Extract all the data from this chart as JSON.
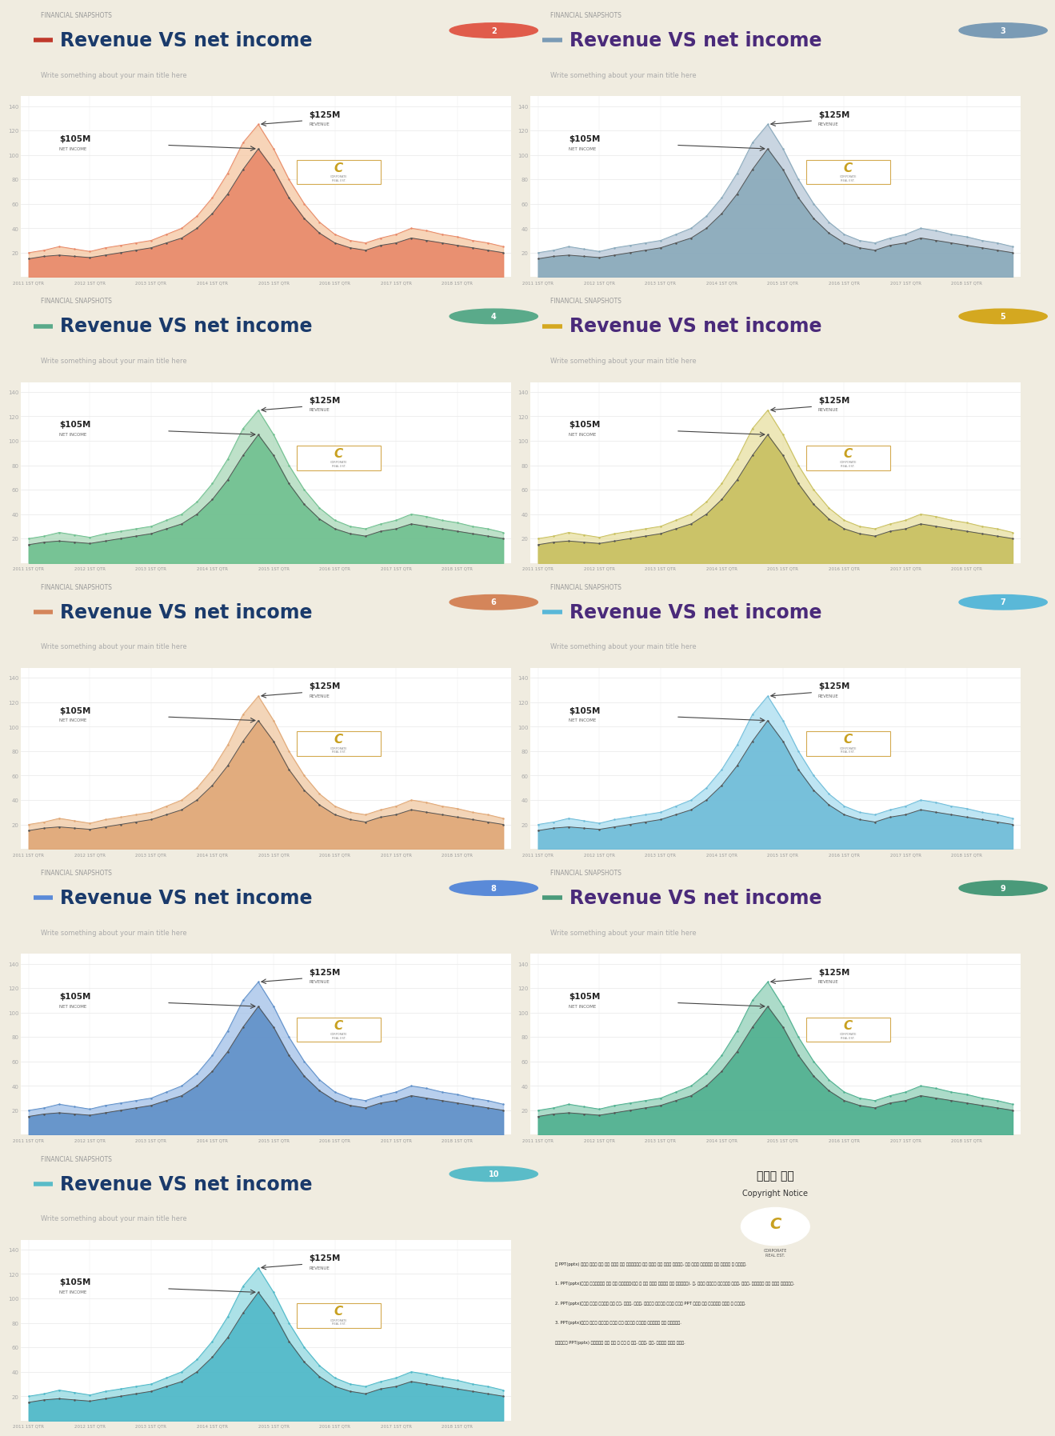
{
  "background_color": "#f0ece0",
  "panel_bg": "#ffffff",
  "subtitle": "Write something about your main title here",
  "financial_label": "FINANCIAL SNAPSHOTS",
  "main_title": "Revenue VS net income",
  "annotation_revenue": "$125M",
  "annotation_net": "$105M",
  "label_revenue": "REVENUE",
  "label_net": "NET INCOME",
  "x_labels": [
    "2011 1ST QTR",
    "2012 1ST QTR",
    "2013 1ST QTR",
    "2014 1ST QTR",
    "2015 1ST QTR",
    "2016 1ST QTR",
    "2017 1ST QTR",
    "2018 1ST QTR"
  ],
  "y_ticks": [
    20,
    40,
    60,
    80,
    100,
    120,
    140
  ],
  "ylim": [
    0,
    148
  ],
  "panels": [
    {
      "number": "2",
      "number_color": "#e05c4b",
      "title_color": "#1a3a6b",
      "dash_color": "#c0392b",
      "fill_color1": "#f5c6a0",
      "fill_color2": "#e8896a"
    },
    {
      "number": "3",
      "number_color": "#7a9bb5",
      "title_color": "#4a2a7a",
      "dash_color": "#7a9bb5",
      "fill_color1": "#b8c8d8",
      "fill_color2": "#8aaabb"
    },
    {
      "number": "4",
      "number_color": "#5aaa8a",
      "title_color": "#1a3a6b",
      "dash_color": "#5aaa8a",
      "fill_color1": "#a8d8b8",
      "fill_color2": "#70c090"
    },
    {
      "number": "5",
      "number_color": "#d4a820",
      "title_color": "#4a2a7a",
      "dash_color": "#d4a820",
      "fill_color1": "#e8dfa0",
      "fill_color2": "#c8c060"
    },
    {
      "number": "6",
      "number_color": "#d4855a",
      "title_color": "#1a3a6b",
      "dash_color": "#d4855a",
      "fill_color1": "#f0c8a0",
      "fill_color2": "#e0a878"
    },
    {
      "number": "7",
      "number_color": "#5ab8d8",
      "title_color": "#4a2a7a",
      "dash_color": "#5ab8d8",
      "fill_color1": "#a8ddf0",
      "fill_color2": "#70bcd8"
    },
    {
      "number": "8",
      "number_color": "#5a8ad8",
      "title_color": "#1a3a6b",
      "dash_color": "#5a8ad8",
      "fill_color1": "#a0c0e8",
      "fill_color2": "#6090c8"
    },
    {
      "number": "9",
      "number_color": "#4a9a7a",
      "title_color": "#4a2a7a",
      "dash_color": "#4a9a7a",
      "fill_color1": "#90d0b8",
      "fill_color2": "#50b090"
    },
    {
      "number": "10",
      "number_color": "#5abcc8",
      "title_color": "#1a3a6b",
      "dash_color": "#5abcc8",
      "fill_color1": "#90d8e0",
      "fill_color2": "#50b8c8"
    }
  ],
  "x_data": [
    0,
    1,
    2,
    3,
    4,
    5,
    6,
    7,
    8,
    9,
    10,
    11,
    12,
    13,
    14,
    15,
    16,
    17,
    18,
    19,
    20,
    21,
    22,
    23,
    24,
    25,
    26,
    27,
    28,
    29,
    30,
    31
  ],
  "y_revenue": [
    20,
    22,
    25,
    23,
    21,
    24,
    26,
    28,
    30,
    35,
    40,
    50,
    65,
    85,
    110,
    125,
    105,
    80,
    60,
    45,
    35,
    30,
    28,
    32,
    35,
    40,
    38,
    35,
    33,
    30,
    28,
    25
  ],
  "y_netincome": [
    15,
    17,
    18,
    17,
    16,
    18,
    20,
    22,
    24,
    28,
    32,
    40,
    52,
    68,
    88,
    105,
    88,
    65,
    48,
    36,
    28,
    24,
    22,
    26,
    28,
    32,
    30,
    28,
    26,
    24,
    22,
    20
  ],
  "copyright_bg": "#5ab0d8",
  "copyright_border": "#3a8ab8",
  "copyright_title": "저작권 공고",
  "copyright_subtitle": "Copyright Notice",
  "copyright_lines": [
    "이 PPT(pptx) 파일은 저작권 법에 의해 보호를 받는 저작물이므로 무단 전재와 무단 복제를 금지하며, 이를 위반시 저작권법에 따라 처벌받을 수 있습니다.",
    "",
    "1. PPT(pptx)파일은 유료구매자에 한해 사용 가능합니다(개인 및 기업 활동에 자유롭게 활용 가능합니다). 단, 파일을 타인에게 양도하거나 재판매, 재배포, 재가공하는 것은 엄격히 금지됩니다.",
    "",
    "2. PPT(pptx)파일은 삽입된 이미지에 한해 수정, 재사용, 재배포, 재가공이 허용되지 않으며 단순한 PPT 페이지 구성 목적으로만 사용할 수 있습니다.",
    "",
    "3. PPT(pptx)파일의 서식은 저작권법 보호를 받지 않으므로 자유롭게 재구성하여 사용 가능합니다.",
    "",
    "숨라이드고 PPT(pptx) 이용약관에 따라 구매 후 수정 및 배포, 재판매, 공유, 재가공이 불가능 합니다."
  ]
}
